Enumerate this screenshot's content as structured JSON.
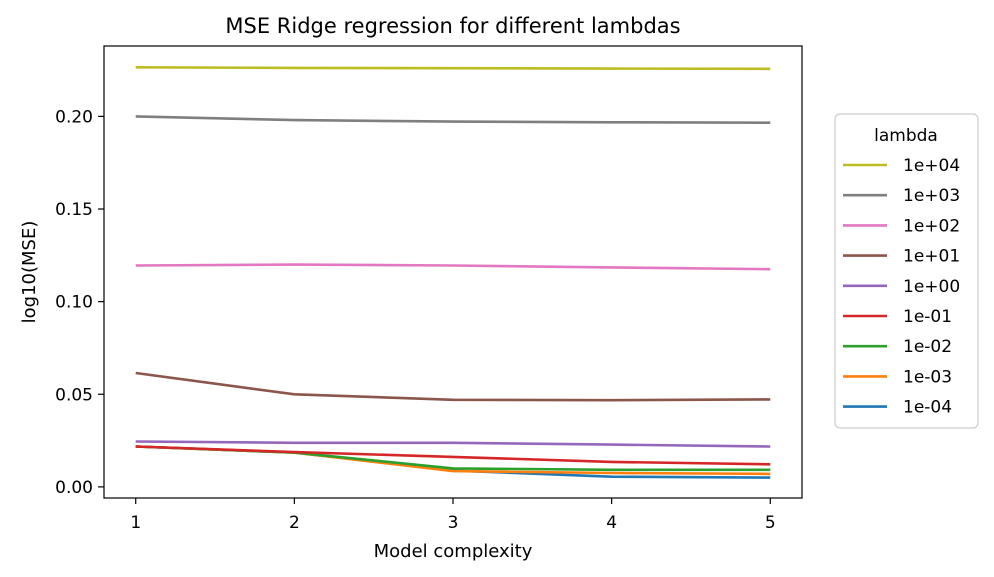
{
  "chart_data": {
    "type": "line",
    "title": "MSE Ridge regression for different lambdas",
    "xlabel": "Model complexity",
    "ylabel": "log10(MSE)",
    "x": [
      1,
      2,
      3,
      4,
      5
    ],
    "xticks": [
      "1",
      "2",
      "3",
      "4",
      "5"
    ],
    "yticks": [
      "0.00",
      "0.05",
      "0.10",
      "0.15",
      "0.20"
    ],
    "ytick_values": [
      0.0,
      0.05,
      0.1,
      0.15,
      0.2
    ],
    "xlim": [
      0.8,
      5.2
    ],
    "ylim": [
      -0.006,
      0.238
    ],
    "grid": false,
    "legend": {
      "title": "lambda",
      "placement": "outside-right"
    },
    "series": [
      {
        "name": "1e+04",
        "color": "#bcbd22",
        "values": [
          0.2265,
          0.2262,
          0.226,
          0.2258,
          0.2257
        ]
      },
      {
        "name": "1e+03",
        "color": "#7f7f7f",
        "values": [
          0.2,
          0.198,
          0.1972,
          0.1968,
          0.1966
        ]
      },
      {
        "name": "1e+02",
        "color": "#e377c2",
        "values": [
          0.1195,
          0.12,
          0.1195,
          0.1185,
          0.1175
        ]
      },
      {
        "name": "1e+01",
        "color": "#8c564b",
        "values": [
          0.0615,
          0.05,
          0.047,
          0.0468,
          0.0472
        ]
      },
      {
        "name": "1e+00",
        "color": "#9467bd",
        "values": [
          0.0245,
          0.0238,
          0.0238,
          0.0228,
          0.0218
        ]
      },
      {
        "name": "1e-01",
        "color": "#d62728",
        "values": [
          0.0218,
          0.0188,
          0.0162,
          0.0135,
          0.0122
        ]
      },
      {
        "name": "1e-02",
        "color": "#2ca02c",
        "values": [
          0.0218,
          0.0185,
          0.01,
          0.0092,
          0.0092
        ]
      },
      {
        "name": "1e-03",
        "color": "#ff7f0e",
        "values": [
          0.0218,
          0.0185,
          0.0085,
          0.0075,
          0.007
        ]
      },
      {
        "name": "1e-04",
        "color": "#1f77b4",
        "values": [
          0.0218,
          0.0185,
          0.0088,
          0.0055,
          0.005
        ]
      }
    ]
  }
}
